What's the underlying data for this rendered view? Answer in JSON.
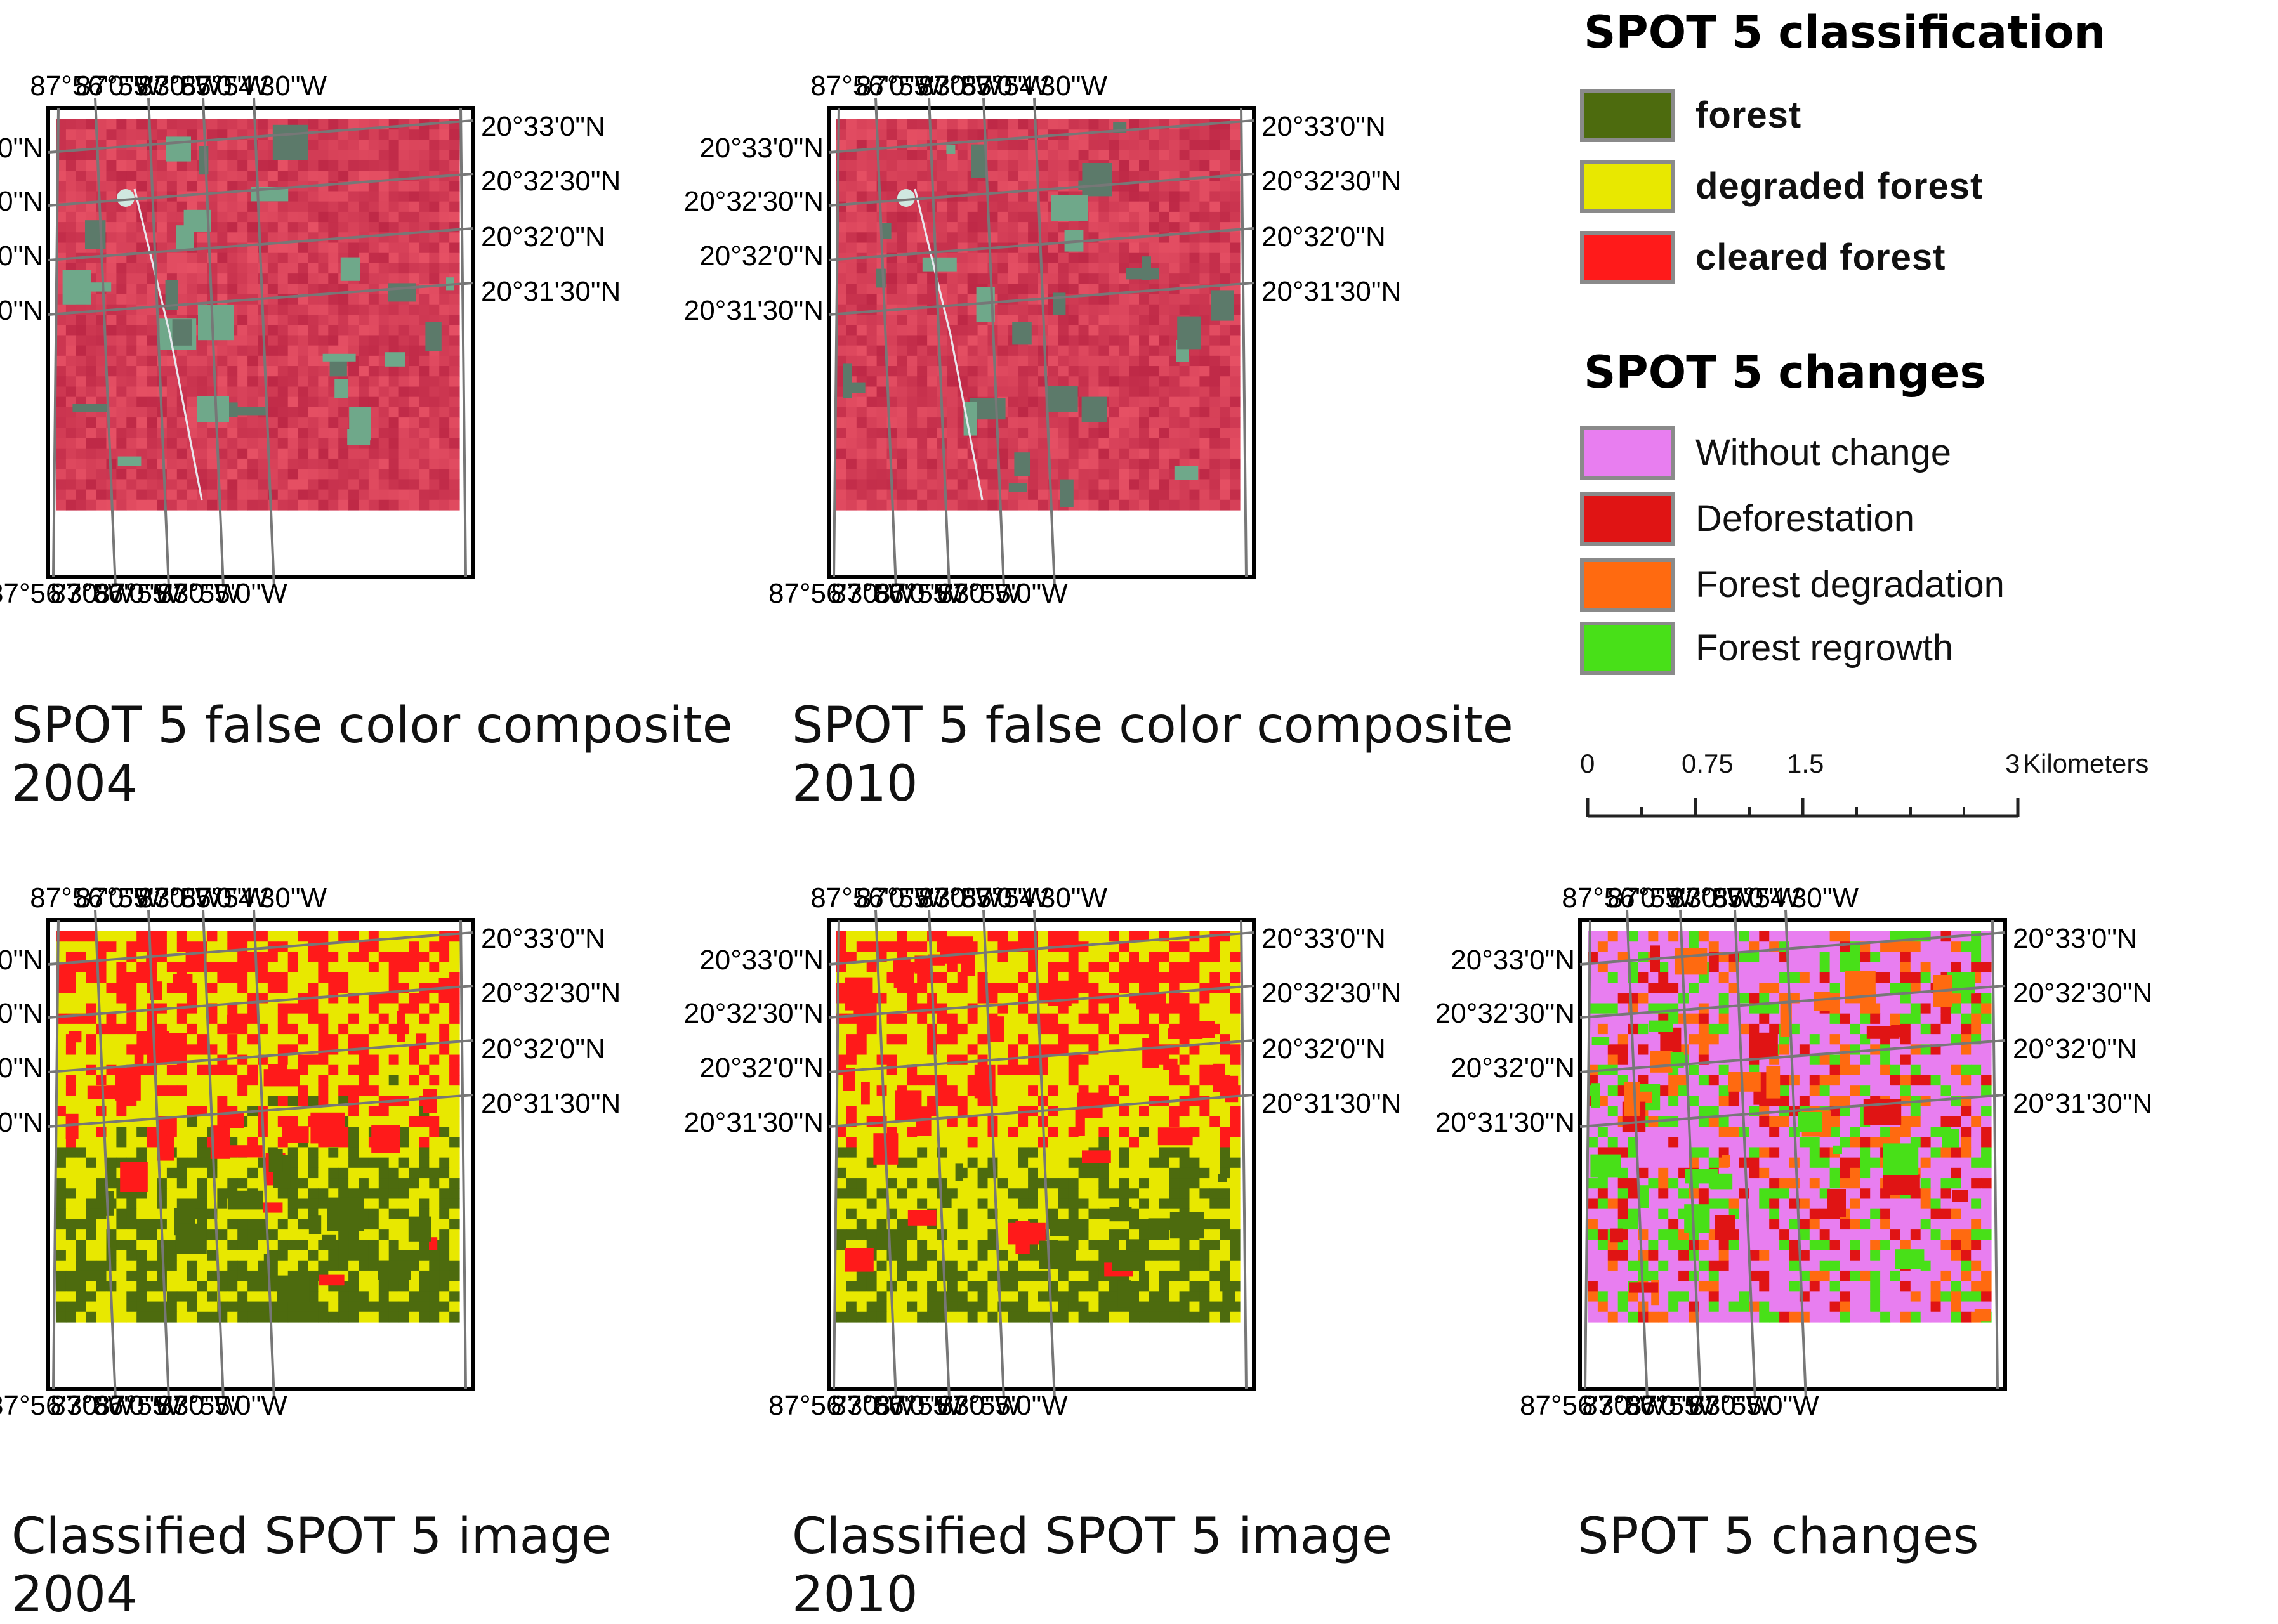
{
  "classification_legend": {
    "title": "SPOT 5 classification",
    "items": [
      {
        "label": "forest",
        "color": "#4d6b0e"
      },
      {
        "label": "degraded forest",
        "color": "#e8e800"
      },
      {
        "label": "cleared forest",
        "color": "#ff1a1a"
      }
    ]
  },
  "changes_legend": {
    "title": "SPOT 5 changes",
    "items": [
      {
        "label": "Without change",
        "color": "#e87ef0"
      },
      {
        "label": "Deforestation",
        "color": "#e01414"
      },
      {
        "label": "Forest degradation",
        "color": "#ff6a10"
      },
      {
        "label": "Forest regrowth",
        "color": "#48e018"
      }
    ]
  },
  "scale_bar": {
    "labels": [
      "0",
      "0.75",
      "1.5",
      "3"
    ],
    "unit": "Kilometers"
  },
  "panels": [
    {
      "id": "fcc2004",
      "kind": "false-color",
      "caption_line1": "SPOT 5 false color composite",
      "caption_line2": "2004"
    },
    {
      "id": "fcc2010",
      "kind": "false-color",
      "caption_line1": "SPOT 5 false color composite",
      "caption_line2": "2010"
    },
    {
      "id": "cls2004",
      "kind": "classified",
      "caption_line1": "Classified SPOT 5 image",
      "caption_line2": "2004"
    },
    {
      "id": "cls2010",
      "kind": "classified",
      "caption_line1": "Classified SPOT 5 image",
      "caption_line2": "2010"
    },
    {
      "id": "chg",
      "kind": "changes",
      "caption_line1": "SPOT 5 changes",
      "caption_line2": ""
    }
  ],
  "grid_labels": {
    "top_longitudes": [
      "87°56'0\"W",
      "87°55'30\"W",
      "87°55'0\"W",
      "87°54'30\"W"
    ],
    "bottom_longitudes": [
      "87°56'30\"W",
      "87°56'0\"W",
      "87°55'30\"W",
      "87°55'0\"W"
    ],
    "left_latitudes": [
      "20°33'0\"N",
      "20°32'30\"N",
      "20°32'0\"N",
      "20°31'30\"N"
    ],
    "right_latitudes": [
      "20°33'0\"N",
      "20°32'30\"N",
      "20°32'0\"N",
      "20°31'30\"N"
    ]
  }
}
